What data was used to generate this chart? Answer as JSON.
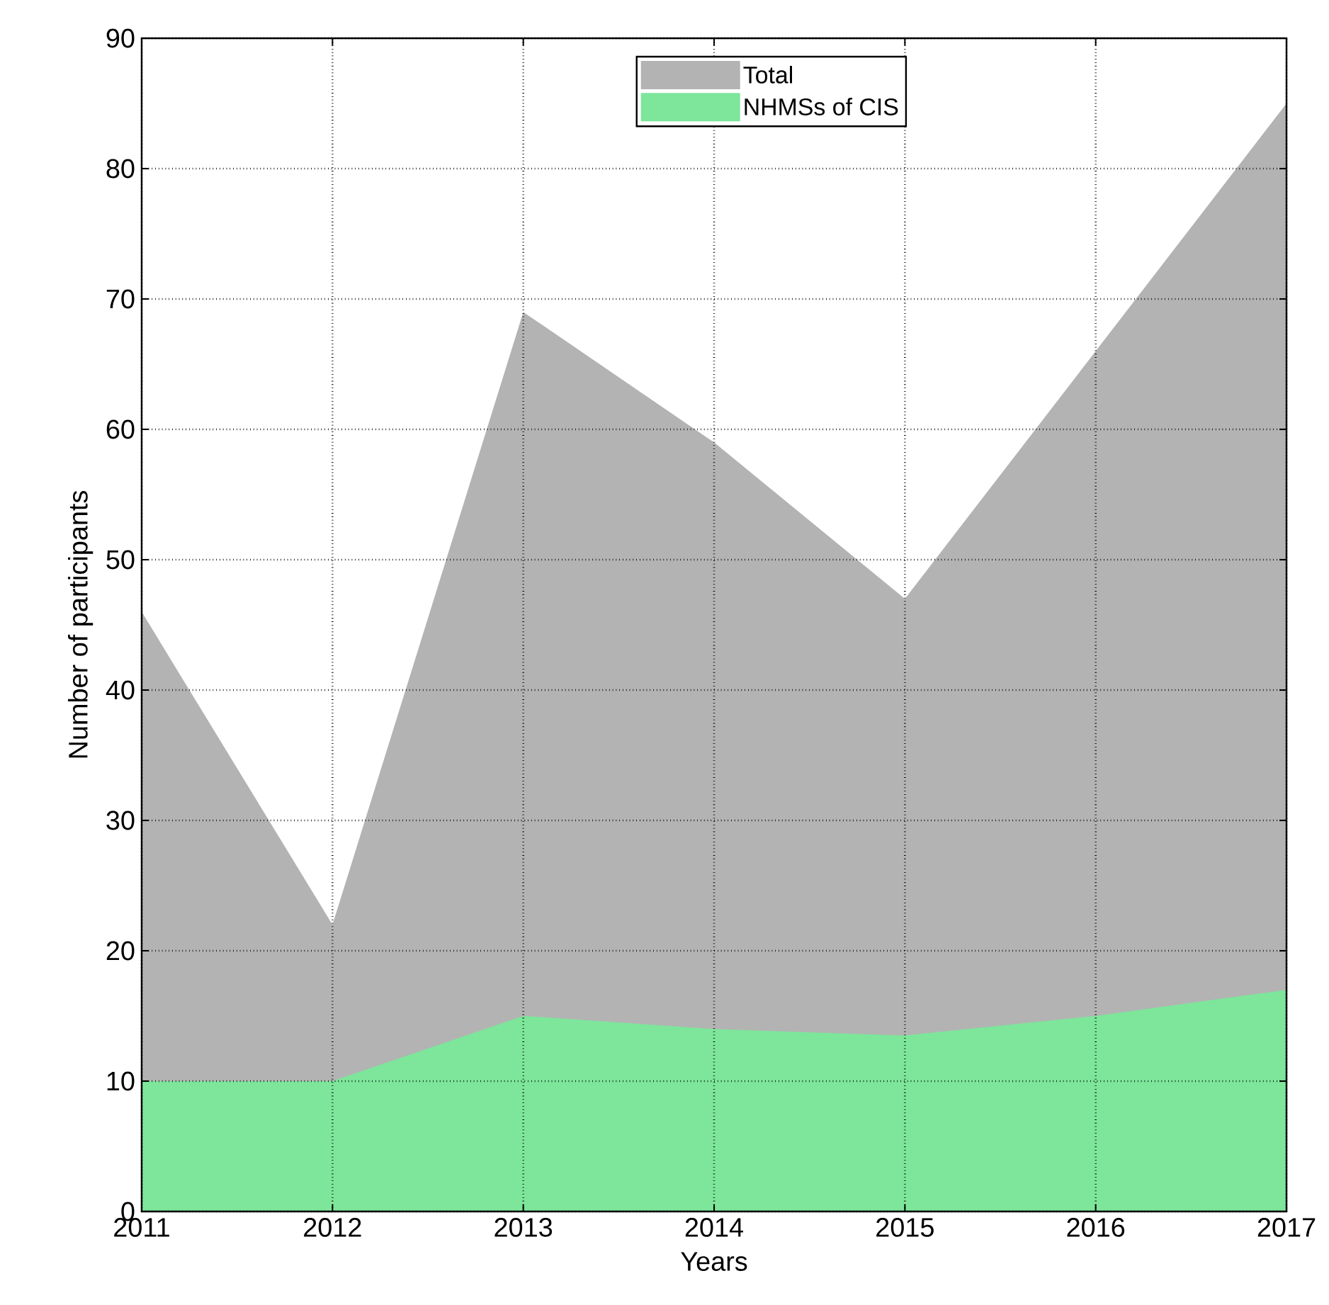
{
  "chart_data": {
    "type": "area",
    "xlabel": "Years",
    "ylabel": "Number of participants",
    "x": [
      2011,
      2012,
      2013,
      2014,
      2015,
      2016,
      2017
    ],
    "series": [
      {
        "name": "Total",
        "color": "#b3b3b3",
        "values": [
          46,
          22,
          69,
          59,
          47,
          66,
          85
        ]
      },
      {
        "name": "NHMSs of CIS",
        "color": "#7de69a",
        "values": [
          10,
          10,
          15,
          14,
          13.5,
          15,
          17
        ]
      }
    ],
    "xlim": [
      2011,
      2017
    ],
    "xticks": [
      2011,
      2012,
      2013,
      2014,
      2015,
      2016,
      2017
    ],
    "ylim": [
      0,
      90
    ],
    "yticks": [
      0,
      10,
      20,
      30,
      40,
      50,
      60,
      70,
      80,
      90
    ],
    "grid": true,
    "legend": "top"
  }
}
